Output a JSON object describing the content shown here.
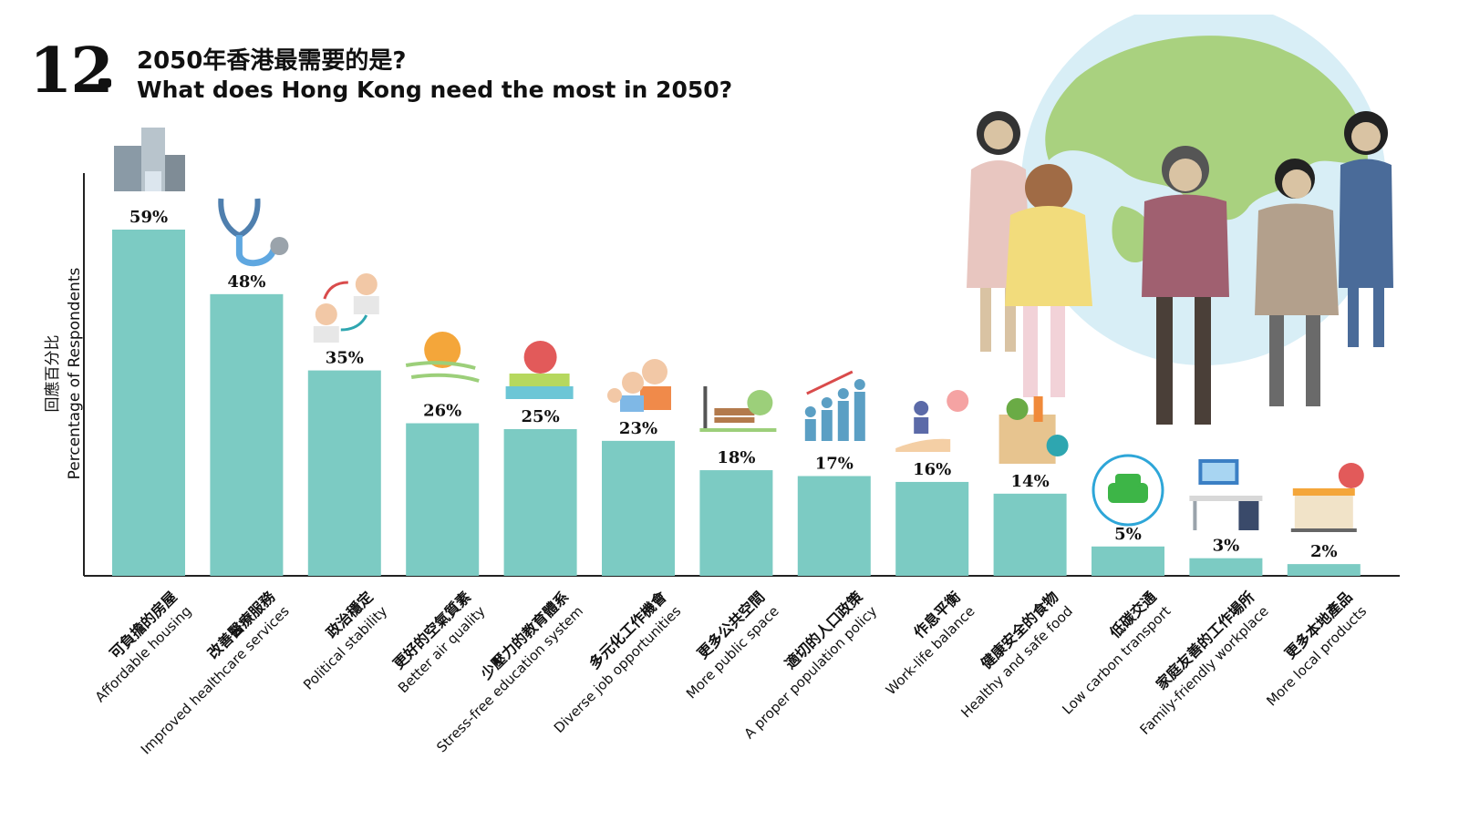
{
  "header": {
    "number": "12",
    "title_zh": "2050年香港最需要的是?",
    "title_en": "What does Hong Kong need the most in 2050?"
  },
  "colors": {
    "bar": "#7ccbc3",
    "axis": "#222222",
    "globe_ocean": "#d8eef6",
    "globe_land": "#a9d17f"
  },
  "chart_data": {
    "type": "bar",
    "title": "2050年香港最需要的是? What does Hong Kong need the most in 2050?",
    "ylabel_zh": "回應百分比",
    "ylabel_en": "Percentage of Respondents",
    "ylim": [
      0,
      60
    ],
    "grid": false,
    "categories": [
      {
        "zh": "可負擔的房屋",
        "en": "Affordable housing",
        "icon": "buildings-icon"
      },
      {
        "zh": "改善醫療服務",
        "en": "Improved healthcare services",
        "icon": "stethoscope-icon"
      },
      {
        "zh": "政治穩定",
        "en": "Political stability",
        "icon": "people-exchange-icon"
      },
      {
        "zh": "更好的空氣質素",
        "en": "Better air quality",
        "icon": "sun-wind-icon"
      },
      {
        "zh": "少壓力的教育體系",
        "en": "Stress-free education system",
        "icon": "books-apple-icon"
      },
      {
        "zh": "多元化工作機會",
        "en": "Diverse job opportunities",
        "icon": "family-icon"
      },
      {
        "zh": "更多公共空間",
        "en": "More public space",
        "icon": "park-bench-icon"
      },
      {
        "zh": "適切的人口政策",
        "en": "A proper population policy",
        "icon": "population-growth-icon"
      },
      {
        "zh": "作息平衡",
        "en": "Work-life balance",
        "icon": "hand-heart-icon"
      },
      {
        "zh": "健康安全的食物",
        "en": "Healthy and safe food",
        "icon": "grocery-bag-icon"
      },
      {
        "zh": "低碳交通",
        "en": "Low carbon transport",
        "icon": "electric-car-icon"
      },
      {
        "zh": "家庭友善的工作場所",
        "en": "Family-friendly workplace",
        "icon": "desk-computer-icon"
      },
      {
        "zh": "更多本地產品",
        "en": "More local products",
        "icon": "local-shop-icon"
      }
    ],
    "values": [
      59,
      48,
      35,
      26,
      25,
      23,
      18,
      17,
      16,
      14,
      5,
      3,
      2
    ],
    "value_labels": [
      "59%",
      "48%",
      "35%",
      "26%",
      "25%",
      "23%",
      "18%",
      "17%",
      "16%",
      "14%",
      "5%",
      "3%",
      "2%"
    ]
  }
}
